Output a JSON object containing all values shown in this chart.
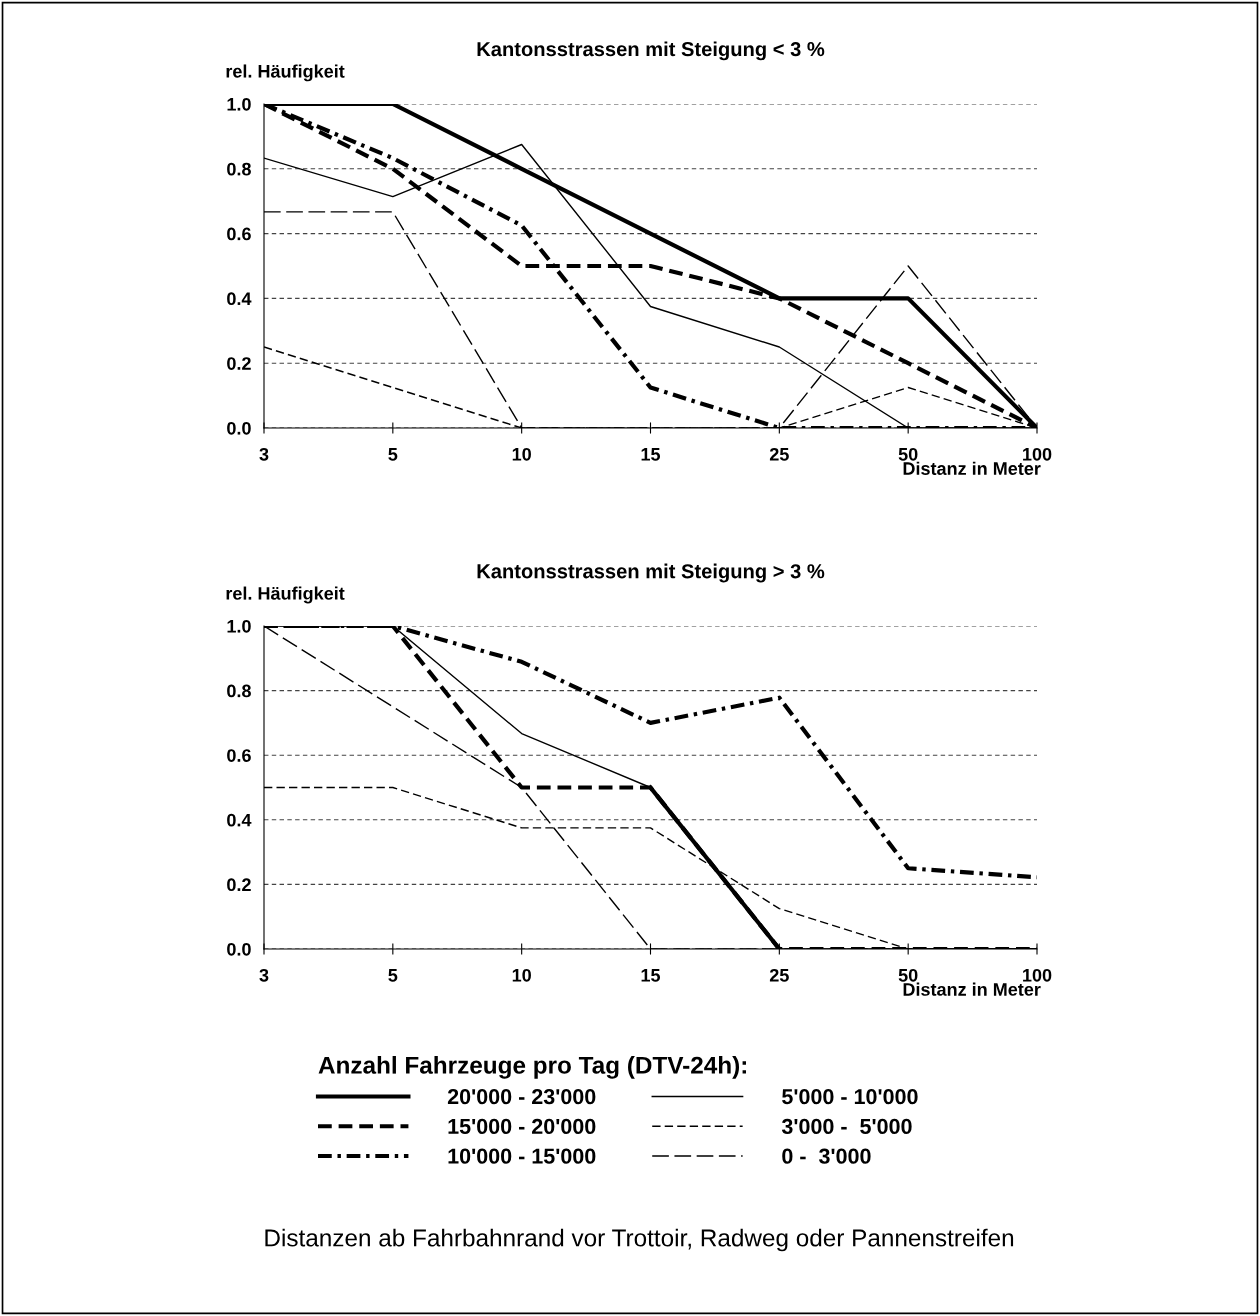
{
  "chart_data": [
    {
      "type": "line",
      "title": "Kantonsstrassen mit Steigung < 3 %",
      "ylabel": "rel. Häufigkeit",
      "xlabel": "Distanz in Meter",
      "categories": [
        "3",
        "5",
        "10",
        "15",
        "25",
        "50",
        "100"
      ],
      "ylim": [
        0,
        1
      ],
      "yticks": [
        {
          "value": 0,
          "label": "0.0"
        },
        {
          "value": 0.2,
          "label": "0.2"
        },
        {
          "value": 0.4,
          "label": "0.4"
        },
        {
          "value": 0.6,
          "label": "0.6"
        },
        {
          "value": 0.8,
          "label": "0.8"
        },
        {
          "value": 1,
          "label": "1.0"
        }
      ],
      "grid": "y",
      "marker": "none",
      "series": [
        {
          "color": "#000000",
          "line_style": "solid",
          "values": [
            1,
            1,
            0.8,
            0.6,
            0.4,
            0.4,
            0
          ]
        },
        {
          "color": "#000000",
          "line_style": "dashed",
          "values": [
            1,
            0.8,
            0.5,
            0.5,
            0.4,
            0.2,
            0
          ]
        },
        {
          "color": "#000000",
          "line_style": "dashdot",
          "values": [
            1,
            0.833,
            0.625,
            0.125,
            0,
            0,
            0
          ]
        },
        {
          "color": "#000000",
          "line_style": "solid",
          "values": [
            0.833,
            0.714,
            0.875,
            0.375,
            0.25,
            0,
            0
          ]
        },
        {
          "color": "#000000",
          "line_style": "dashed",
          "values": [
            0.25,
            0.125,
            0,
            0,
            0,
            0.125,
            0
          ]
        },
        {
          "color": "#000000",
          "line_style": "longdash",
          "values": [
            0.667,
            0.667,
            0,
            0,
            0,
            0.5,
            0
          ]
        }
      ]
    },
    {
      "type": "line",
      "title": "Kantonsstrassen mit Steigung > 3 %",
      "ylabel": "rel. Häufigkeit",
      "xlabel": "Distanz in Meter",
      "categories": [
        "3",
        "5",
        "10",
        "15",
        "25",
        "50",
        "100"
      ],
      "ylim": [
        0,
        1
      ],
      "yticks": [
        {
          "value": 0,
          "label": "0.0"
        },
        {
          "value": 0.2,
          "label": "0.2"
        },
        {
          "value": 0.4,
          "label": "0.4"
        },
        {
          "value": 0.6,
          "label": "0.6"
        },
        {
          "value": 0.8,
          "label": "0.8"
        },
        {
          "value": 1,
          "label": "1.0"
        }
      ],
      "grid": "y",
      "marker": "none",
      "legend": "bottom",
      "legend_title": "Anzahl Fahrzeuge pro Tag (DTV-24h):",
      "annotations": [
        "Distanzen ab Fahrbahnrand vor Trottoir, Radweg oder Pannenstreifen"
      ],
      "series": [
        {
          "name": "20'000 - 23'000",
          "color": "#000000",
          "line_style": "solid",
          "values": [
            null,
            null,
            null,
            0.5,
            0,
            null,
            null
          ]
        },
        {
          "name": "15'000 - 20'000",
          "color": "#000000",
          "line_style": "dashed",
          "values": [
            1,
            1,
            0.5,
            0.5,
            0,
            0,
            0
          ]
        },
        {
          "name": "10'000 - 15'000",
          "color": "#000000",
          "line_style": "dashdot",
          "values": [
            1,
            1,
            0.889,
            0.7,
            0.778,
            0.25,
            0.222
          ]
        },
        {
          "name": "5'000 - 10'000",
          "color": "#000000",
          "line_style": "solid",
          "values": [
            1,
            1,
            0.667,
            0.5,
            0,
            0,
            0
          ]
        },
        {
          "name": "3'000 -  5'000",
          "color": "#000000",
          "line_style": "dashed",
          "values": [
            0.5,
            0.5,
            0.375,
            0.375,
            0.125,
            0,
            0
          ]
        },
        {
          "name": "0 -  3'000",
          "color": "#000000",
          "line_style": "longdash",
          "values": [
            1,
            0.75,
            0.5,
            0,
            0,
            0,
            0
          ]
        }
      ]
    }
  ]
}
